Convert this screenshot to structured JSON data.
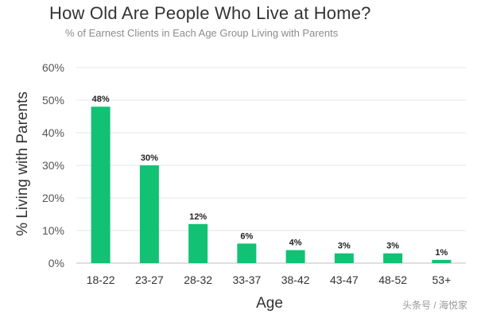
{
  "colors": {
    "bar": "#11c274",
    "grid": "#e6e6e6",
    "baseline": "#bfbfbf"
  },
  "chart_data": {
    "type": "bar",
    "title": "How Old Are People Who Live at Home?",
    "subtitle": "% of Earnest Clients in Each Age Group Living with Parents",
    "xlabel": "Age",
    "ylabel": "% Living with Parents",
    "categories": [
      "18-22",
      "23-27",
      "28-32",
      "33-37",
      "38-42",
      "43-47",
      "48-52",
      "53+"
    ],
    "values": [
      48,
      30,
      12,
      6,
      4,
      3,
      3,
      1
    ],
    "value_labels": [
      "48%",
      "30%",
      "12%",
      "6%",
      "4%",
      "3%",
      "3%",
      "1%"
    ],
    "ylim": [
      0,
      60
    ],
    "yticks": [
      "0%",
      "10%",
      "20%",
      "30%",
      "40%",
      "50%",
      "60%"
    ],
    "grid": true,
    "legend": "none"
  },
  "watermark": "头条号 / 海悦家"
}
